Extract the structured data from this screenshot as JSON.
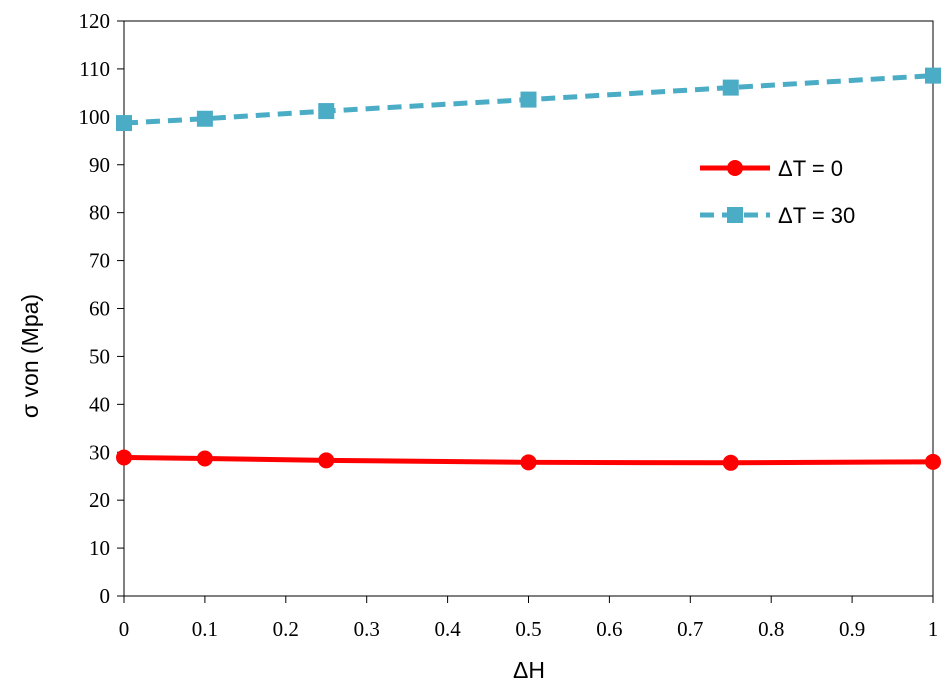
{
  "chart_data": {
    "type": "line",
    "title": "",
    "xlabel": "ΔH",
    "ylabel": "σ von (Mpa)",
    "xlim": [
      0,
      1
    ],
    "ylim": [
      0,
      120
    ],
    "xticks": [
      0,
      0.1,
      0.2,
      0.3,
      0.4,
      0.5,
      0.6,
      0.7,
      0.8,
      0.9,
      1
    ],
    "xtick_labels": [
      "0",
      "0.1",
      "0.2",
      "0.3",
      "0.4",
      "0.5",
      "0.6",
      "0.7",
      "0.8",
      "0.9",
      "1"
    ],
    "yticks": [
      0,
      10,
      20,
      30,
      40,
      50,
      60,
      70,
      80,
      90,
      100,
      110,
      120
    ],
    "ytick_labels": [
      "0",
      "10",
      "20",
      "30",
      "40",
      "50",
      "60",
      "70",
      "80",
      "90",
      "100",
      "110",
      "120"
    ],
    "grid": false,
    "legend_position": "right",
    "series": [
      {
        "name": "ΔT = 0",
        "x": [
          0,
          0.1,
          0.25,
          0.5,
          0.75,
          1
        ],
        "y": [
          28.9,
          28.7,
          28.3,
          27.9,
          27.8,
          28.0
        ],
        "color": "#ff0000",
        "marker": "circle",
        "line_style": "solid"
      },
      {
        "name": "ΔT = 30",
        "x": [
          0,
          0.1,
          0.25,
          0.5,
          0.75,
          1
        ],
        "y": [
          98.7,
          99.6,
          101.2,
          103.6,
          106.1,
          108.6
        ],
        "color": "#4bacc6",
        "marker": "square",
        "line_style": "dashed"
      }
    ]
  }
}
